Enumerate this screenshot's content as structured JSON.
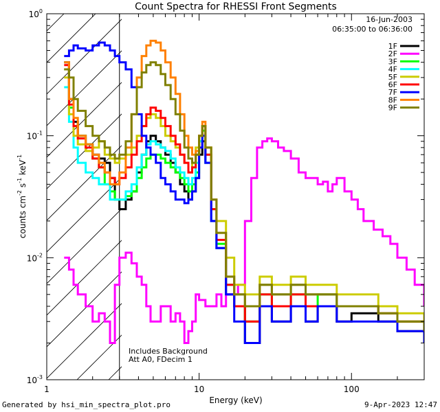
{
  "chart_data": {
    "type": "line",
    "title": "Count Spectra for RHESSI Front Segments",
    "xlabel": "Energy (keV)",
    "ylabel_parts": [
      "counts cm",
      "-2",
      " s",
      "-1",
      " keV",
      "-1"
    ],
    "xscale": "log",
    "yscale": "log",
    "xlim": [
      1,
      300
    ],
    "ylim": [
      0.001,
      1
    ],
    "x_ticks": [
      {
        "value": 1,
        "label": "1"
      },
      {
        "value": 10,
        "label": "10"
      },
      {
        "value": 100,
        "label": "100"
      }
    ],
    "y_ticks": [
      {
        "value": 0.001,
        "base": "10",
        "exp": "-3"
      },
      {
        "value": 0.01,
        "base": "10",
        "exp": "-2"
      },
      {
        "value": 0.1,
        "base": "10",
        "exp": "-1"
      },
      {
        "value": 1,
        "base": "10",
        "exp": "0"
      }
    ],
    "info_lines": [
      "16-Jun-2003",
      "06:35:00 to 06:36:00"
    ],
    "notes": [
      "Includes Background",
      "Att A0, FDecim 1"
    ],
    "attenuator_region_kev": [
      1,
      3
    ],
    "legend_position": "top-right",
    "series": [
      {
        "name": "1F",
        "color": "#000000",
        "x": [
          1.3,
          1.4,
          1.5,
          1.6,
          1.8,
          2.0,
          2.2,
          2.4,
          2.6,
          2.8,
          3.0,
          3.3,
          3.6,
          3.9,
          4.2,
          4.5,
          4.8,
          5.2,
          5.6,
          6.0,
          6.5,
          7.0,
          7.5,
          8.0,
          8.5,
          9.0,
          9.5,
          10,
          10.5,
          11,
          12,
          13,
          15,
          17,
          20,
          25,
          30,
          40,
          50,
          60,
          80,
          100,
          150,
          200,
          300
        ],
        "y": [
          0.4,
          0.2,
          0.13,
          0.1,
          0.085,
          0.07,
          0.065,
          0.06,
          0.045,
          0.03,
          0.025,
          0.03,
          0.035,
          0.05,
          0.07,
          0.09,
          0.1,
          0.09,
          0.08,
          0.07,
          0.06,
          0.05,
          0.04,
          0.035,
          0.03,
          0.035,
          0.045,
          0.07,
          0.09,
          0.06,
          0.02,
          0.012,
          0.005,
          0.004,
          0.002,
          0.004,
          0.003,
          0.004,
          0.003,
          0.004,
          0.003,
          0.0035,
          0.003,
          0.0025,
          0.002
        ]
      },
      {
        "name": "2F",
        "color": "#ff00ff",
        "x": [
          1.3,
          1.4,
          1.5,
          1.6,
          1.8,
          2.0,
          2.2,
          2.4,
          2.6,
          2.8,
          3.0,
          3.3,
          3.6,
          3.9,
          4.2,
          4.5,
          4.8,
          5.2,
          5.6,
          6.0,
          6.5,
          7.0,
          7.5,
          8.0,
          8.5,
          9.0,
          9.5,
          10,
          11,
          12,
          13,
          14,
          15,
          16,
          17,
          18,
          19,
          20,
          22,
          24,
          26,
          28,
          30,
          33,
          36,
          40,
          45,
          50,
          55,
          60,
          65,
          70,
          75,
          80,
          90,
          100,
          110,
          120,
          140,
          160,
          180,
          200,
          230,
          260,
          300
        ],
        "y": [
          0.01,
          0.008,
          0.006,
          0.005,
          0.004,
          0.003,
          0.0035,
          0.003,
          0.002,
          0.006,
          0.01,
          0.011,
          0.009,
          0.007,
          0.006,
          0.004,
          0.003,
          0.003,
          0.004,
          0.004,
          0.003,
          0.0035,
          0.003,
          0.002,
          0.0025,
          0.003,
          0.005,
          0.0045,
          0.004,
          0.004,
          0.005,
          0.004,
          0.005,
          0.005,
          0.005,
          0.006,
          0.006,
          0.02,
          0.045,
          0.08,
          0.09,
          0.095,
          0.09,
          0.08,
          0.075,
          0.065,
          0.05,
          0.045,
          0.045,
          0.04,
          0.042,
          0.035,
          0.04,
          0.045,
          0.035,
          0.03,
          0.025,
          0.02,
          0.017,
          0.015,
          0.013,
          0.01,
          0.008,
          0.006,
          0.004
        ]
      },
      {
        "name": "3F",
        "color": "#00ff00",
        "x": [
          1.3,
          1.4,
          1.5,
          1.6,
          1.8,
          2.0,
          2.2,
          2.4,
          2.6,
          2.8,
          3.0,
          3.3,
          3.6,
          3.9,
          4.2,
          4.5,
          4.8,
          5.2,
          5.6,
          6.0,
          6.5,
          7.0,
          7.5,
          8.0,
          8.5,
          9.0,
          9.5,
          10,
          10.5,
          11,
          12,
          13,
          15,
          17,
          20,
          25,
          30,
          40,
          50,
          60,
          80,
          100,
          150,
          200,
          300
        ],
        "y": [
          0.35,
          0.17,
          0.12,
          0.1,
          0.085,
          0.065,
          0.055,
          0.04,
          0.035,
          0.03,
          0.03,
          0.032,
          0.035,
          0.045,
          0.055,
          0.065,
          0.07,
          0.07,
          0.065,
          0.06,
          0.055,
          0.05,
          0.045,
          0.04,
          0.035,
          0.04,
          0.05,
          0.09,
          0.11,
          0.07,
          0.025,
          0.013,
          0.006,
          0.004,
          0.003,
          0.005,
          0.004,
          0.005,
          0.004,
          0.005,
          0.004,
          0.004,
          0.0035,
          0.003,
          0.0025
        ]
      },
      {
        "name": "4F",
        "color": "#00ffff",
        "x": [
          1.3,
          1.4,
          1.5,
          1.6,
          1.8,
          2.0,
          2.2,
          2.4,
          2.6,
          2.8,
          3.0,
          3.3,
          3.6,
          3.9,
          4.2,
          4.5,
          4.8,
          5.2,
          5.6,
          6.0,
          6.5,
          7.0,
          7.5,
          8.0,
          8.5,
          9.0,
          9.5,
          10,
          10.5,
          11,
          12,
          13,
          15,
          17,
          20,
          25,
          30,
          40,
          50,
          60,
          80,
          100,
          150,
          200,
          300
        ],
        "y": [
          0.25,
          0.13,
          0.08,
          0.06,
          0.05,
          0.045,
          0.04,
          0.04,
          0.03,
          0.03,
          0.03,
          0.035,
          0.04,
          0.055,
          0.07,
          0.085,
          0.09,
          0.085,
          0.08,
          0.075,
          0.065,
          0.055,
          0.05,
          0.045,
          0.04,
          0.045,
          0.06,
          0.09,
          0.1,
          0.06,
          0.02,
          0.012,
          0.006,
          0.005,
          0.004,
          0.006,
          0.005,
          0.006,
          0.005,
          0.005,
          0.004,
          0.004,
          0.0035,
          0.003,
          0.0025
        ]
      },
      {
        "name": "5F",
        "color": "#cccc00",
        "x": [
          1.3,
          1.4,
          1.5,
          1.6,
          1.8,
          2.0,
          2.2,
          2.4,
          2.6,
          2.8,
          3.0,
          3.3,
          3.6,
          3.9,
          4.2,
          4.5,
          4.8,
          5.2,
          5.6,
          6.0,
          6.5,
          7.0,
          7.5,
          8.0,
          8.5,
          9.0,
          9.5,
          10,
          10.5,
          11,
          12,
          13,
          15,
          17,
          20,
          25,
          30,
          40,
          50,
          60,
          80,
          100,
          150,
          200,
          300
        ],
        "y": [
          0.3,
          0.15,
          0.1,
          0.085,
          0.075,
          0.08,
          0.09,
          0.07,
          0.065,
          0.06,
          0.065,
          0.07,
          0.08,
          0.1,
          0.12,
          0.14,
          0.15,
          0.14,
          0.12,
          0.1,
          0.09,
          0.08,
          0.07,
          0.06,
          0.05,
          0.06,
          0.08,
          0.1,
          0.12,
          0.08,
          0.03,
          0.02,
          0.01,
          0.006,
          0.005,
          0.007,
          0.006,
          0.007,
          0.006,
          0.006,
          0.005,
          0.005,
          0.004,
          0.0035,
          0.003
        ]
      },
      {
        "name": "6F",
        "color": "#ff0000",
        "x": [
          1.3,
          1.4,
          1.5,
          1.6,
          1.8,
          2.0,
          2.2,
          2.4,
          2.6,
          2.8,
          3.0,
          3.3,
          3.6,
          3.9,
          4.2,
          4.5,
          4.8,
          5.2,
          5.6,
          6.0,
          6.5,
          7.0,
          7.5,
          8.0,
          8.5,
          9.0,
          9.5,
          10,
          10.5,
          11,
          12,
          13,
          15,
          17,
          20,
          25,
          30,
          40,
          50,
          60,
          80,
          100,
          150,
          200,
          300
        ],
        "y": [
          0.38,
          0.18,
          0.12,
          0.095,
          0.08,
          0.065,
          0.055,
          0.05,
          0.045,
          0.04,
          0.045,
          0.055,
          0.07,
          0.09,
          0.12,
          0.15,
          0.17,
          0.16,
          0.14,
          0.12,
          0.1,
          0.085,
          0.07,
          0.06,
          0.05,
          0.055,
          0.07,
          0.1,
          0.12,
          0.07,
          0.025,
          0.014,
          0.006,
          0.004,
          0.003,
          0.005,
          0.004,
          0.005,
          0.004,
          0.004,
          0.004,
          0.004,
          0.0035,
          0.003,
          0.0025
        ]
      },
      {
        "name": "7F",
        "color": "#0000ff",
        "x": [
          1.3,
          1.4,
          1.5,
          1.6,
          1.8,
          2.0,
          2.2,
          2.4,
          2.6,
          2.8,
          3.0,
          3.3,
          3.6,
          3.9,
          4.2,
          4.5,
          4.8,
          5.2,
          5.6,
          6.0,
          6.5,
          7.0,
          7.5,
          8.0,
          8.5,
          9.0,
          9.5,
          10,
          10.5,
          11,
          12,
          13,
          15,
          17,
          20,
          25,
          30,
          40,
          50,
          60,
          80,
          100,
          150,
          200,
          300
        ],
        "y": [
          0.45,
          0.5,
          0.55,
          0.52,
          0.5,
          0.55,
          0.58,
          0.55,
          0.5,
          0.45,
          0.4,
          0.35,
          0.25,
          0.15,
          0.1,
          0.08,
          0.07,
          0.06,
          0.045,
          0.04,
          0.035,
          0.03,
          0.03,
          0.028,
          0.03,
          0.035,
          0.045,
          0.08,
          0.1,
          0.06,
          0.02,
          0.012,
          0.005,
          0.003,
          0.002,
          0.004,
          0.003,
          0.004,
          0.003,
          0.004,
          0.003,
          0.003,
          0.003,
          0.0025,
          0.002
        ]
      },
      {
        "name": "8F",
        "color": "#ff8000",
        "x": [
          1.3,
          1.4,
          1.5,
          1.6,
          1.8,
          2.0,
          2.2,
          2.4,
          2.6,
          2.8,
          3.0,
          3.3,
          3.6,
          3.9,
          4.2,
          4.5,
          4.8,
          5.2,
          5.6,
          6.0,
          6.5,
          7.0,
          7.5,
          8.0,
          8.5,
          9.0,
          9.5,
          10,
          10.5,
          11,
          12,
          13,
          15,
          17,
          20,
          25,
          30,
          40,
          50,
          60,
          80,
          100,
          150,
          200,
          300
        ],
        "y": [
          0.4,
          0.2,
          0.14,
          0.1,
          0.085,
          0.07,
          0.06,
          0.05,
          0.04,
          0.04,
          0.05,
          0.08,
          0.15,
          0.3,
          0.45,
          0.55,
          0.6,
          0.58,
          0.5,
          0.4,
          0.3,
          0.22,
          0.15,
          0.1,
          0.08,
          0.07,
          0.075,
          0.1,
          0.13,
          0.08,
          0.03,
          0.016,
          0.007,
          0.005,
          0.004,
          0.006,
          0.005,
          0.006,
          0.005,
          0.005,
          0.004,
          0.004,
          0.0035,
          0.003,
          0.0025
        ]
      },
      {
        "name": "9F",
        "color": "#808000",
        "x": [
          1.3,
          1.4,
          1.5,
          1.6,
          1.8,
          2.0,
          2.2,
          2.4,
          2.6,
          2.8,
          3.0,
          3.3,
          3.6,
          3.9,
          4.2,
          4.5,
          4.8,
          5.2,
          5.6,
          6.0,
          6.5,
          7.0,
          7.5,
          8.0,
          8.5,
          9.0,
          9.5,
          10,
          10.5,
          11,
          12,
          13,
          15,
          17,
          20,
          25,
          30,
          40,
          50,
          60,
          80,
          100,
          150,
          200,
          300
        ],
        "y": [
          0.35,
          0.3,
          0.2,
          0.16,
          0.12,
          0.1,
          0.09,
          0.08,
          0.07,
          0.065,
          0.07,
          0.09,
          0.15,
          0.25,
          0.33,
          0.38,
          0.4,
          0.38,
          0.32,
          0.26,
          0.2,
          0.15,
          0.11,
          0.08,
          0.065,
          0.06,
          0.07,
          0.1,
          0.12,
          0.08,
          0.03,
          0.016,
          0.007,
          0.005,
          0.004,
          0.006,
          0.005,
          0.006,
          0.005,
          0.005,
          0.004,
          0.004,
          0.0035,
          0.003,
          0.0025
        ]
      }
    ]
  },
  "footer": {
    "left": "Generated by hsi_min_spectra_plot.pro",
    "right": "9-Apr-2023 12:47"
  }
}
